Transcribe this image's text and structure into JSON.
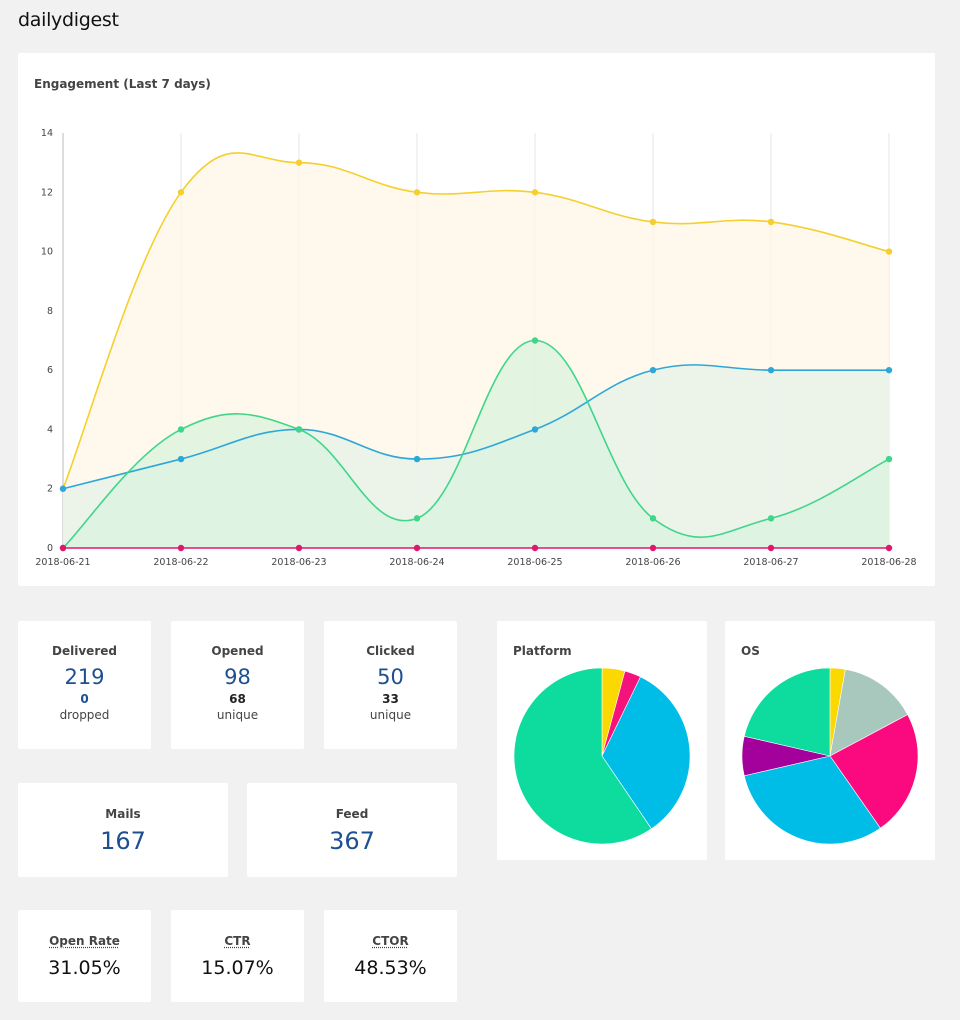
{
  "app": {
    "title": "dailydigest"
  },
  "engagement": {
    "title": "Engagement (Last 7 days)"
  },
  "stats": {
    "delivered": {
      "label": "Delivered",
      "value": "219",
      "sub_value": "0",
      "sub_label": "dropped"
    },
    "opened": {
      "label": "Opened",
      "value": "98",
      "sub_value": "68",
      "sub_label": "unique"
    },
    "clicked": {
      "label": "Clicked",
      "value": "50",
      "sub_value": "33",
      "sub_label": "unique"
    },
    "mails": {
      "label": "Mails",
      "value": "167"
    },
    "feed": {
      "label": "Feed",
      "value": "367"
    },
    "open_rate": {
      "label": "Open Rate",
      "value": "31.05%"
    },
    "ctr": {
      "label": "CTR",
      "value": "15.07%"
    },
    "ctor": {
      "label": "CTOR",
      "value": "48.53%"
    }
  },
  "colors": {
    "value_blue": "#1d4f91",
    "yellow": "#f5cf2e",
    "blue": "#2ea7d8",
    "green": "#3fd68a",
    "pink": "#e0166e"
  },
  "chart_data": [
    {
      "type": "area",
      "title": "Engagement (Last 7 days)",
      "xlabel": "",
      "ylabel": "",
      "x": [
        "2018-06-21",
        "2018-06-22",
        "2018-06-23",
        "2018-06-24",
        "2018-06-25",
        "2018-06-26",
        "2018-06-27",
        "2018-06-28"
      ],
      "ylim": [
        0,
        14
      ],
      "yticks": [
        0,
        2,
        4,
        6,
        8,
        10,
        12,
        14
      ],
      "grid": "vertical",
      "legend": "none",
      "series": [
        {
          "name": "yellow",
          "color": "#f5cf2e",
          "fill": "#fdf7e6",
          "values": [
            2,
            12,
            13,
            12,
            12,
            11,
            11,
            10
          ]
        },
        {
          "name": "blue",
          "color": "#2ea7d8",
          "fill": "#e6f1ea",
          "values": [
            2,
            3,
            4,
            3,
            4,
            6,
            6,
            6
          ]
        },
        {
          "name": "green",
          "color": "#3fd68a",
          "fill": "#d9f3de",
          "values": [
            0,
            4,
            4,
            1,
            7,
            1,
            1,
            3
          ]
        },
        {
          "name": "pink",
          "color": "#e0166e",
          "fill": "none",
          "values": [
            0,
            0,
            0,
            0,
            0,
            0,
            0,
            0
          ]
        }
      ]
    },
    {
      "type": "pie",
      "title": "Platform",
      "legend": "none",
      "slices": [
        {
          "label": "yellow",
          "value": 4.2,
          "color": "#fbd800"
        },
        {
          "label": "pink",
          "value": 3.0,
          "color": "#f5127a"
        },
        {
          "label": "blue",
          "value": 33.3,
          "color": "#00bde8"
        },
        {
          "label": "green",
          "value": 59.5,
          "color": "#0ddc9e"
        }
      ]
    },
    {
      "type": "pie",
      "title": "OS",
      "legend": "none",
      "slices": [
        {
          "label": "yellow",
          "value": 2.8,
          "color": "#fbd800"
        },
        {
          "label": "gray",
          "value": 14.4,
          "color": "#a9c8bd"
        },
        {
          "label": "pink",
          "value": 23.1,
          "color": "#fa0a7e"
        },
        {
          "label": "blue",
          "value": 31.1,
          "color": "#00bde8"
        },
        {
          "label": "purple",
          "value": 7.2,
          "color": "#a3009c"
        },
        {
          "label": "green",
          "value": 21.4,
          "color": "#0ddc9e"
        }
      ]
    }
  ]
}
